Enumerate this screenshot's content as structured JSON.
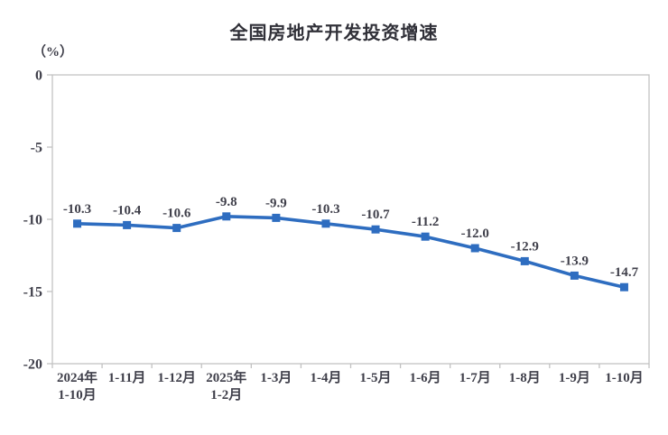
{
  "chart": {
    "title": "全国房地产开发投资增速",
    "unit_label": "（%）"
  },
  "chart_data": {
    "type": "line",
    "title": "全国房地产开发投资增速",
    "ylabel": "（%）",
    "xlabel": "",
    "categories": [
      "2024年\n1-10月",
      "1-11月",
      "1-12月",
      "2025年\n1-2月",
      "1-3月",
      "1-4月",
      "1-5月",
      "1-6月",
      "1-7月",
      "1-8月",
      "1-9月",
      "1-10月"
    ],
    "values": [
      -10.3,
      -10.4,
      -10.6,
      -9.8,
      -9.9,
      -10.3,
      -10.7,
      -11.2,
      -12.0,
      -12.9,
      -13.9,
      -14.7
    ],
    "data_labels": [
      "-10.3",
      "-10.4",
      "-10.6",
      "-9.8",
      "-9.9",
      "-10.3",
      "-10.7",
      "-11.2",
      "-12.0",
      "-12.9",
      "-13.9",
      "-14.7"
    ],
    "ylim": [
      -20,
      0
    ],
    "yticks": [
      0,
      -5,
      -10,
      -15,
      -20
    ],
    "grid": false,
    "legend": "none",
    "line_color": "#2e6dc0",
    "marker": "square",
    "border_color": "#c2c2c2",
    "text_color": "#3f3f4a"
  }
}
